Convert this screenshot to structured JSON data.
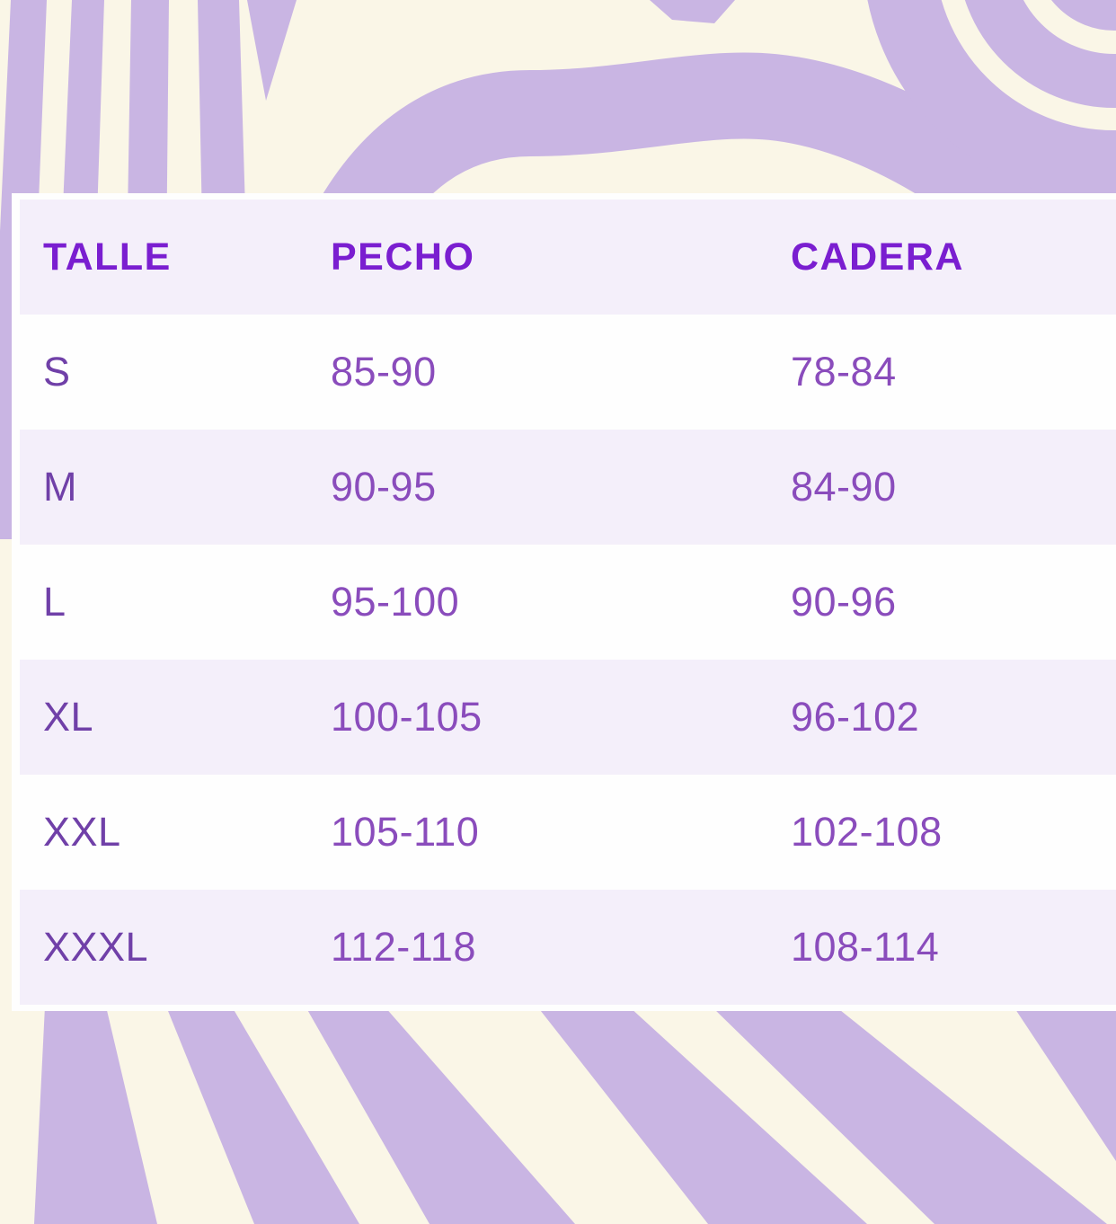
{
  "size_chart": {
    "columns": [
      {
        "key": "talle",
        "label": "TALLE"
      },
      {
        "key": "pecho",
        "label": "PECHO"
      },
      {
        "key": "cadera",
        "label": "CADERA"
      }
    ],
    "rows": [
      {
        "talle": "S",
        "pecho": "85-90",
        "cadera": "78-84"
      },
      {
        "talle": "M",
        "pecho": "90-95",
        "cadera": "84-90"
      },
      {
        "talle": "L",
        "pecho": "95-100",
        "cadera": "90-96"
      },
      {
        "talle": "XL",
        "pecho": "100-105",
        "cadera": "96-102"
      },
      {
        "talle": "XXL",
        "pecho": "105-110",
        "cadera": "102-108"
      },
      {
        "talle": "XXXL",
        "pecho": "112-118",
        "cadera": "108-114"
      }
    ]
  },
  "colors": {
    "background_cream": "#FAF6E7",
    "stripe_lavender": "#C9B5E3",
    "panel_white": "#FEFEFE",
    "row_alt_lavender": "#F4EFFA",
    "header_text_purple": "#7A1ED0",
    "value_text_purple": "#8A4CBC",
    "size_label_purple": "#7040A8"
  }
}
